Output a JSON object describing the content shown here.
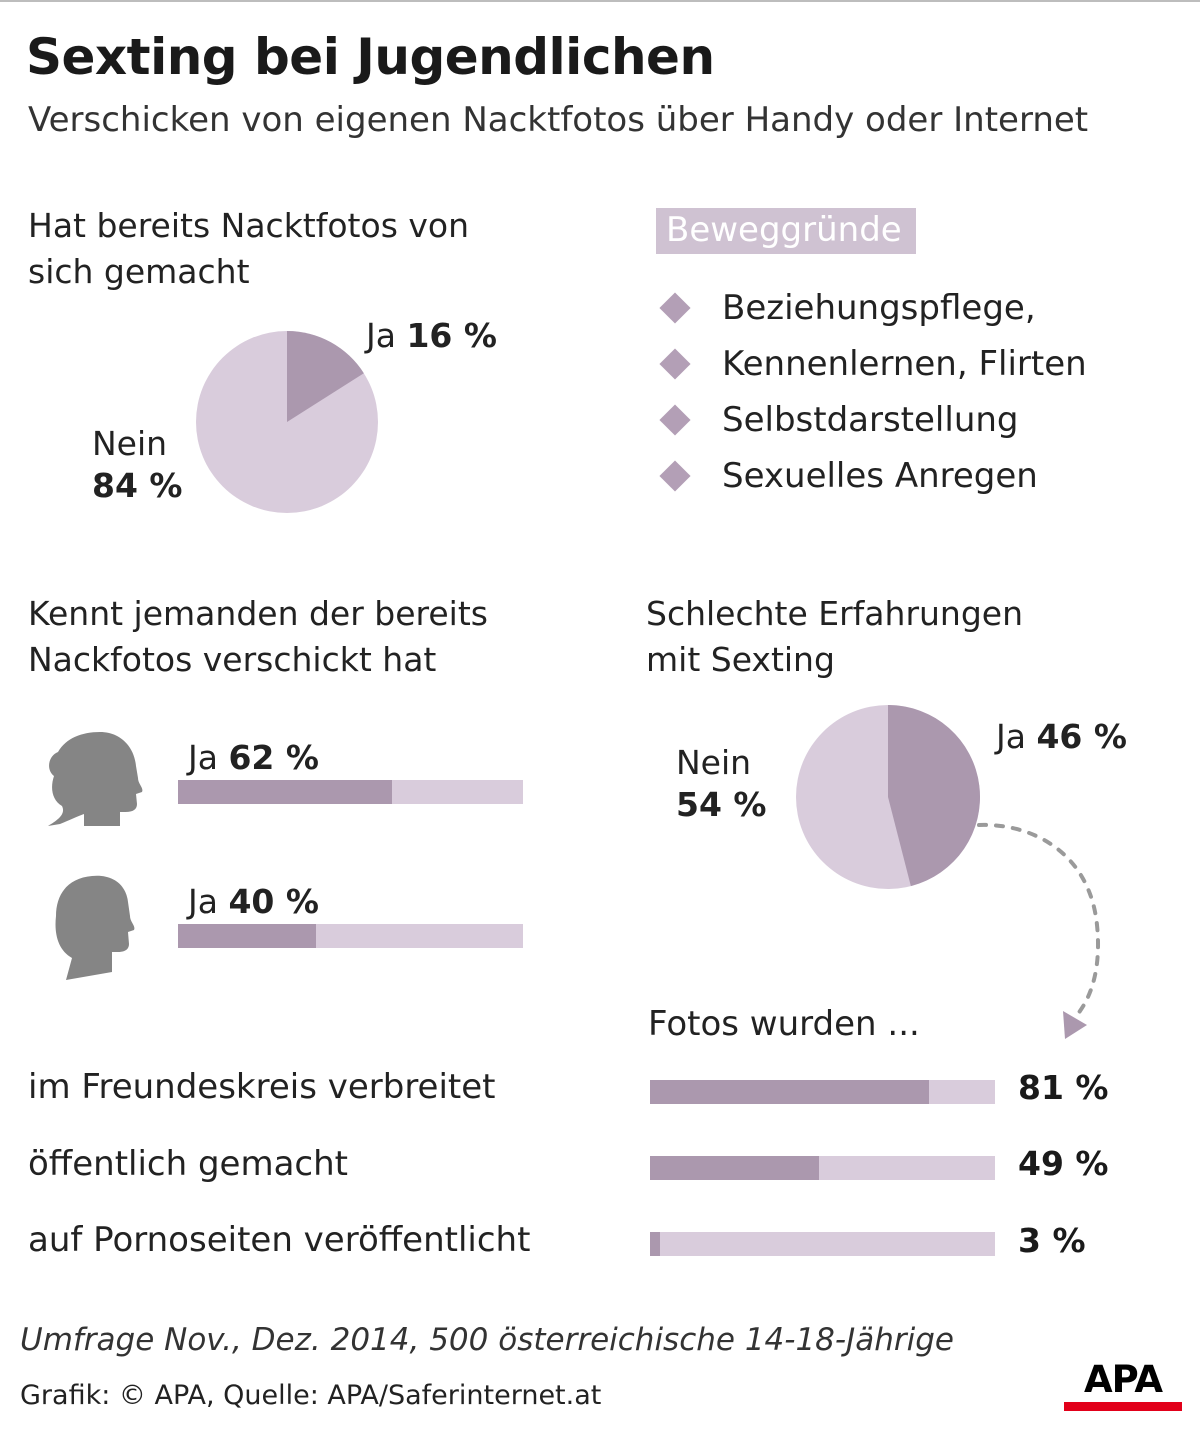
{
  "title": "Sexting bei Jugendlichen",
  "subtitle": "Verschicken von eigenen Nacktfotos über Handy oder Internet",
  "colors": {
    "dark": "#ab98ae",
    "light": "#d9ccdc",
    "badge_bg": "#cfc2d2",
    "brand_red": "#e2001a"
  },
  "section1": {
    "heading_line1": "Hat bereits Nacktfotos von",
    "heading_line2": "sich gemacht",
    "yes_label": "Ja",
    "yes_value": "16 %",
    "no_label": "Nein",
    "no_value": "84 %"
  },
  "reasons": {
    "badge": "Beweggründe",
    "items": [
      "Beziehungspflege,",
      "Kennenlernen, Flirten",
      "Selbstdarstellung",
      "Sexuelles Anregen"
    ],
    "icon": "diamond-bullet-icon"
  },
  "section2": {
    "heading_line1": "Kennt jemanden der bereits",
    "heading_line2": "Nackfotos verschickt hat",
    "female": {
      "label": "Ja",
      "value": "62 %",
      "icon": "female-head-silhouette-icon"
    },
    "male": {
      "label": "Ja",
      "value": "40 %",
      "icon": "male-head-silhouette-icon"
    }
  },
  "section3": {
    "heading_line1": "Schlechte Erfahrungen",
    "heading_line2": "mit Sexting",
    "yes_label": "Ja",
    "yes_value": "46 %",
    "no_label": "Nein",
    "no_value": "54 %"
  },
  "section4": {
    "heading": "Fotos wurden ...",
    "rows": [
      {
        "label": "im Freundeskreis verbreitet",
        "value": "81 %"
      },
      {
        "label": "öffentlich gemacht",
        "value": "49 %"
      },
      {
        "label": "auf Pornoseiten veröffentlicht",
        "value": "3 %"
      }
    ]
  },
  "footer": {
    "note": "Umfrage Nov., Dez. 2014, 500 österreichische 14-18-Jährige",
    "source": "Grafik: © APA, Quelle: APA/Saferinternet.at",
    "logo_text": "APA"
  },
  "chart_data": [
    {
      "type": "pie",
      "title": "Hat bereits Nacktfotos von sich gemacht",
      "categories": [
        "Ja",
        "Nein"
      ],
      "values": [
        16,
        84
      ]
    },
    {
      "type": "bar",
      "title": "Kennt jemanden der bereits Nackfotos verschickt hat",
      "categories": [
        "weiblich",
        "männlich"
      ],
      "values": [
        62,
        40
      ],
      "ylim": [
        0,
        100
      ]
    },
    {
      "type": "pie",
      "title": "Schlechte Erfahrungen mit Sexting",
      "categories": [
        "Ja",
        "Nein"
      ],
      "values": [
        46,
        54
      ]
    },
    {
      "type": "bar",
      "title": "Fotos wurden ...",
      "categories": [
        "im Freundeskreis verbreitet",
        "öffentlich gemacht",
        "auf Pornoseiten veröffentlicht"
      ],
      "values": [
        81,
        49,
        3
      ],
      "ylim": [
        0,
        100
      ]
    }
  ]
}
